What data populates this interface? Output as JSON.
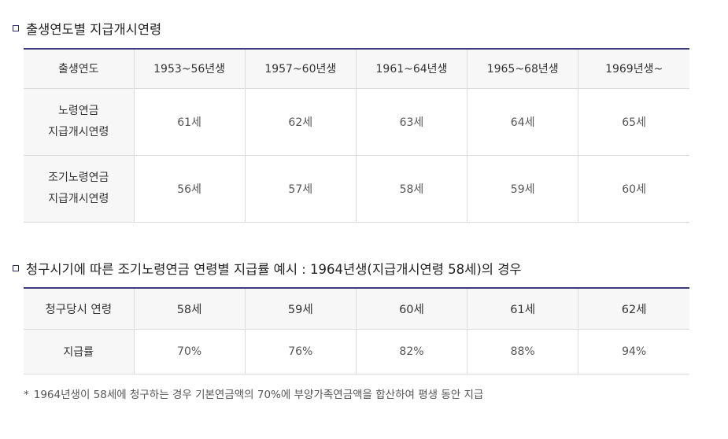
{
  "section1": {
    "title": "출생연도별 지급개시연령",
    "headers": [
      "출생연도",
      "1953~56년생",
      "1957~60년생",
      "1961~64년생",
      "1965~68년생",
      "1969년생~"
    ],
    "rows": [
      {
        "label_line1": "노령연금",
        "label_line2": "지급개시연령",
        "values": [
          "61세",
          "62세",
          "63세",
          "64세",
          "65세"
        ]
      },
      {
        "label_line1": "조기노령연금",
        "label_line2": "지급개시연령",
        "values": [
          "56세",
          "57세",
          "58세",
          "59세",
          "60세"
        ]
      }
    ]
  },
  "section2": {
    "title": "청구시기에 따른 조기노령연금 연령별 지급률 예시 : 1964년생(지급개시연령 58세)의 경우",
    "headers": [
      "청구당시 연령",
      "58세",
      "59세",
      "60세",
      "61세",
      "62세"
    ],
    "row": {
      "label": "지급률",
      "values": [
        "70%",
        "76%",
        "82%",
        "88%",
        "94%"
      ]
    }
  },
  "note": {
    "marker": "*",
    "text": "1964년생이 58세에 청구하는 경우 기본연금액의 70%에 부양가족연금액을 합산하여 평생 동안 지급"
  },
  "colors": {
    "table_top_border": "#3b3b7a",
    "header_bg": "#f7f7f7",
    "bullet": "#2b2b6b"
  }
}
